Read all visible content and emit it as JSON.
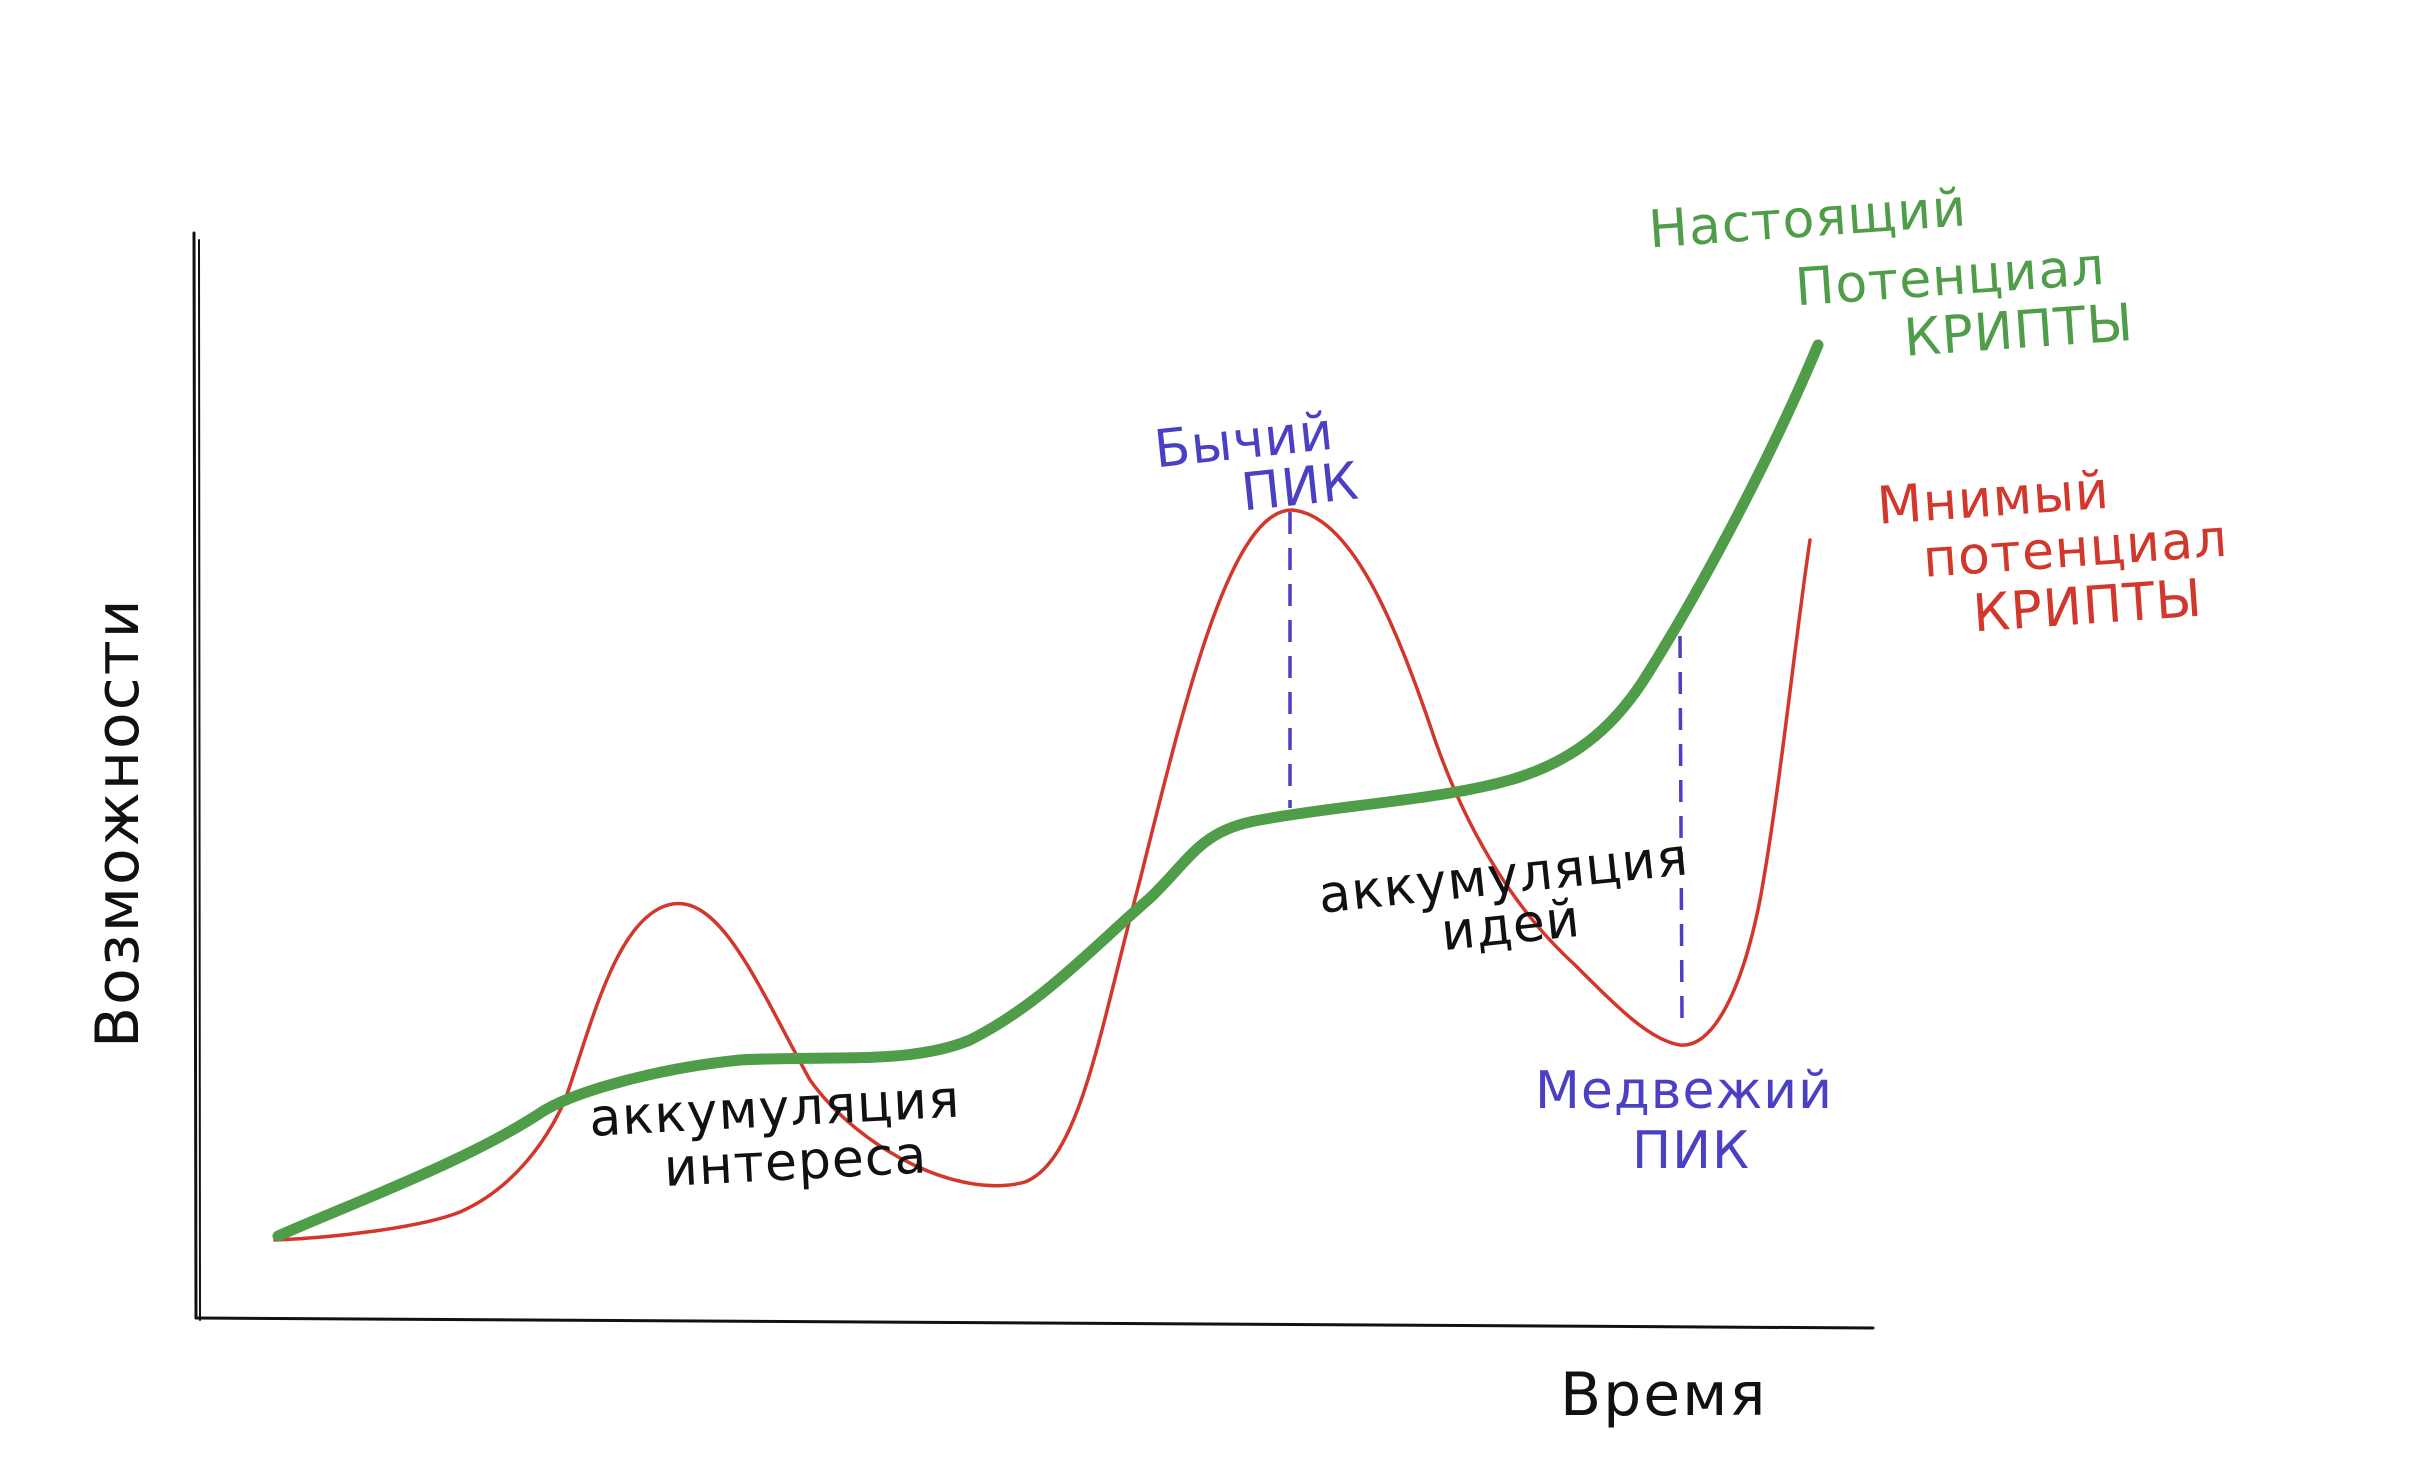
{
  "axes": {
    "x_label": "Время",
    "y_label": "Возможности"
  },
  "colors": {
    "real_potential": "#4f9d48",
    "apparent_potential": "#d2372b",
    "peaks": "#4b3fc4",
    "annotations": "#111111"
  },
  "curves": {
    "real": {
      "label_line1": "Настоящий",
      "label_line2": "Потенциал",
      "label_line3": "КРИПТЫ"
    },
    "apparent": {
      "label_line1": "Мнимый",
      "label_line2": "потенциал",
      "label_line3": "КРИПТЫ"
    }
  },
  "peaks": {
    "bull": {
      "line1": "Бычий",
      "line2": "ПИК"
    },
    "bear": {
      "line1": "Медвежий",
      "line2": "ПИК"
    }
  },
  "phases": {
    "interest": {
      "line1": "аккумуляция",
      "line2": "интереса"
    },
    "ideas": {
      "line1": "аккумуляция",
      "line2": "идей"
    }
  }
}
